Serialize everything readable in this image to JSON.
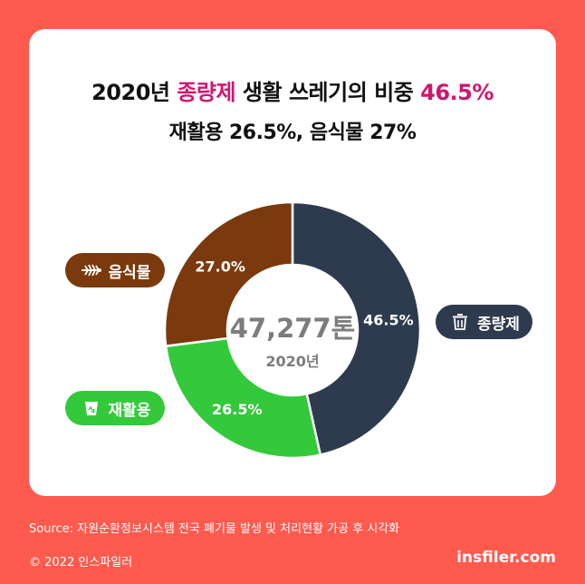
{
  "title": {
    "line1_prefix": "2020년 ",
    "line1_accent": "종량제",
    "line1_mid": " 생활 쓰레기의 비중 ",
    "line1_value": "46.5%",
    "line2": "재활용 26.5%, 음식물 27%"
  },
  "center": {
    "total": "47,277톤",
    "year": "2020년"
  },
  "colors": {
    "background": "#ff5a4e",
    "accent": "#d0166e",
    "general": "#2e3b4e",
    "recycle": "#34c93a",
    "food": "#7a3a0d"
  },
  "chart_data": {
    "type": "pie",
    "variant": "donut",
    "categories": [
      "종량제",
      "재활용",
      "음식물"
    ],
    "values": [
      46.5,
      26.5,
      27.0
    ],
    "value_labels": [
      "46.5%",
      "26.5%",
      "27.0%"
    ],
    "colors": [
      "#2e3b4e",
      "#34c93a",
      "#7a3a0d"
    ],
    "start_angle_deg": 0,
    "direction": "clockwise"
  },
  "legend": {
    "food": {
      "label": "음식물",
      "icon": "fishbone-icon"
    },
    "recycle": {
      "label": "재활용",
      "icon": "recycle-bin-icon"
    },
    "general": {
      "label": "종량제",
      "icon": "trash-can-icon"
    }
  },
  "footer": {
    "source": "Source: 자원순환정보시스템 전국 폐기물 발생 및 처리현황 가공 후 시각화",
    "copyright": "© 2022 인스파일러",
    "site": "insfiler.com"
  }
}
